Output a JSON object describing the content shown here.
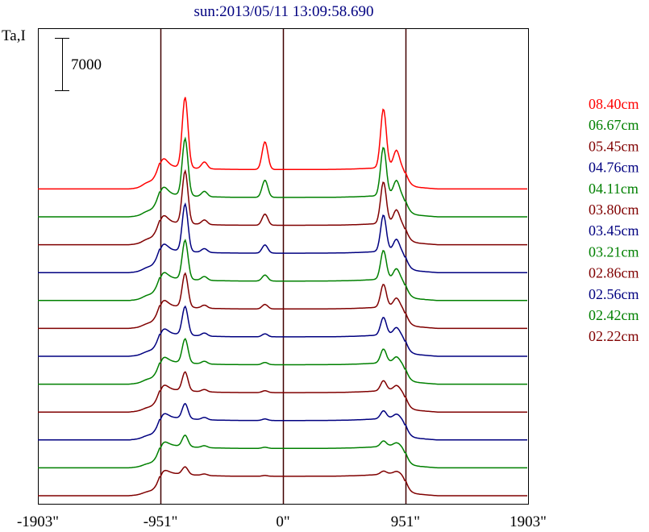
{
  "chart_data": {
    "type": "line",
    "title": "sun:2013/05/11 13:09:58.690",
    "ylabel": "Ta,I",
    "scale_bar_label": "7000",
    "x_ticks": [
      "-1903\"",
      "-951\"",
      "0\"",
      "951\"",
      "1903\""
    ],
    "xlim": [
      -1903,
      1903
    ],
    "reference_lines_at": [
      -951,
      0,
      951
    ],
    "legend_position": "right",
    "series": [
      {
        "name": "08.40cm",
        "color": "#ff0000"
      },
      {
        "name": "06.67cm",
        "color": "#008000"
      },
      {
        "name": "05.45cm",
        "color": "#800000"
      },
      {
        "name": "04.76cm",
        "color": "#000080"
      },
      {
        "name": "04.11cm",
        "color": "#008000"
      },
      {
        "name": "03.80cm",
        "color": "#800000"
      },
      {
        "name": "03.45cm",
        "color": "#000080"
      },
      {
        "name": "03.21cm",
        "color": "#008000"
      },
      {
        "name": "02.86cm",
        "color": "#800000"
      },
      {
        "name": "02.56cm",
        "color": "#000080"
      },
      {
        "name": "02.42cm",
        "color": "#008000"
      },
      {
        "name": "02.22cm",
        "color": "#800000"
      }
    ],
    "profiles": [
      {
        "base": 0,
        "pk": [
          [
            -1050,
            600
          ],
          [
            -951,
            1800
          ],
          [
            -760,
            9400
          ],
          [
            -610,
            900
          ],
          [
            -140,
            3700
          ],
          [
            780,
            7800
          ],
          [
            880,
            2100
          ],
          [
            951,
            300
          ]
        ]
      },
      {
        "base": 0,
        "pk": [
          [
            -1050,
            500
          ],
          [
            -951,
            1700
          ],
          [
            -760,
            7600
          ],
          [
            -610,
            700
          ],
          [
            -140,
            2300
          ],
          [
            780,
            6400
          ],
          [
            880,
            1800
          ],
          [
            951,
            250
          ]
        ]
      },
      {
        "base": 0,
        "pk": [
          [
            -1050,
            500
          ],
          [
            -951,
            1600
          ],
          [
            -760,
            7000
          ],
          [
            -610,
            600
          ],
          [
            -140,
            1500
          ],
          [
            780,
            5500
          ],
          [
            880,
            1600
          ],
          [
            951,
            250
          ]
        ]
      },
      {
        "base": 0,
        "pk": [
          [
            -1050,
            450
          ],
          [
            -951,
            1500
          ],
          [
            -760,
            6300
          ],
          [
            -610,
            500
          ],
          [
            -140,
            1100
          ],
          [
            780,
            4800
          ],
          [
            880,
            1400
          ],
          [
            951,
            200
          ]
        ]
      },
      {
        "base": 0,
        "pk": [
          [
            -1050,
            450
          ],
          [
            -951,
            1400
          ],
          [
            -760,
            5200
          ],
          [
            -610,
            500
          ],
          [
            -140,
            800
          ],
          [
            780,
            3800
          ],
          [
            880,
            1200
          ],
          [
            951,
            200
          ]
        ]
      },
      {
        "base": 0,
        "pk": [
          [
            -1050,
            400
          ],
          [
            -951,
            1400
          ],
          [
            -760,
            4500
          ],
          [
            -610,
            400
          ],
          [
            -140,
            600
          ],
          [
            780,
            3000
          ],
          [
            880,
            1000
          ],
          [
            951,
            200
          ]
        ]
      },
      {
        "base": 0,
        "pk": [
          [
            -1050,
            400
          ],
          [
            -951,
            1300
          ],
          [
            -760,
            3800
          ],
          [
            -610,
            400
          ],
          [
            -140,
            400
          ],
          [
            780,
            2300
          ],
          [
            880,
            800
          ],
          [
            951,
            150
          ]
        ]
      },
      {
        "base": 0,
        "pk": [
          [
            -1050,
            400
          ],
          [
            -951,
            1200
          ],
          [
            -760,
            3200
          ],
          [
            -610,
            350
          ],
          [
            -140,
            300
          ],
          [
            780,
            1800
          ],
          [
            880,
            600
          ],
          [
            951,
            150
          ]
        ]
      },
      {
        "base": 0,
        "pk": [
          [
            -1050,
            350
          ],
          [
            -951,
            1200
          ],
          [
            -760,
            2500
          ],
          [
            -610,
            300
          ],
          [
            -140,
            250
          ],
          [
            780,
            1300
          ],
          [
            880,
            500
          ],
          [
            951,
            150
          ]
        ]
      },
      {
        "base": 0,
        "pk": [
          [
            -1050,
            350
          ],
          [
            -951,
            1100
          ],
          [
            -760,
            2000
          ],
          [
            -610,
            300
          ],
          [
            -140,
            200
          ],
          [
            780,
            1000
          ],
          [
            880,
            400
          ],
          [
            951,
            150
          ]
        ]
      },
      {
        "base": 0,
        "pk": [
          [
            -1050,
            300
          ],
          [
            -951,
            1000
          ],
          [
            -760,
            1500
          ],
          [
            -610,
            250
          ],
          [
            -140,
            150
          ],
          [
            780,
            700
          ],
          [
            880,
            300
          ],
          [
            951,
            150
          ]
        ]
      },
      {
        "base": 0,
        "pk": [
          [
            -1050,
            300
          ],
          [
            -951,
            900
          ],
          [
            -760,
            1000
          ],
          [
            -610,
            200
          ],
          [
            -140,
            100
          ],
          [
            780,
            400
          ],
          [
            880,
            200
          ],
          [
            951,
            150
          ]
        ]
      }
    ]
  }
}
